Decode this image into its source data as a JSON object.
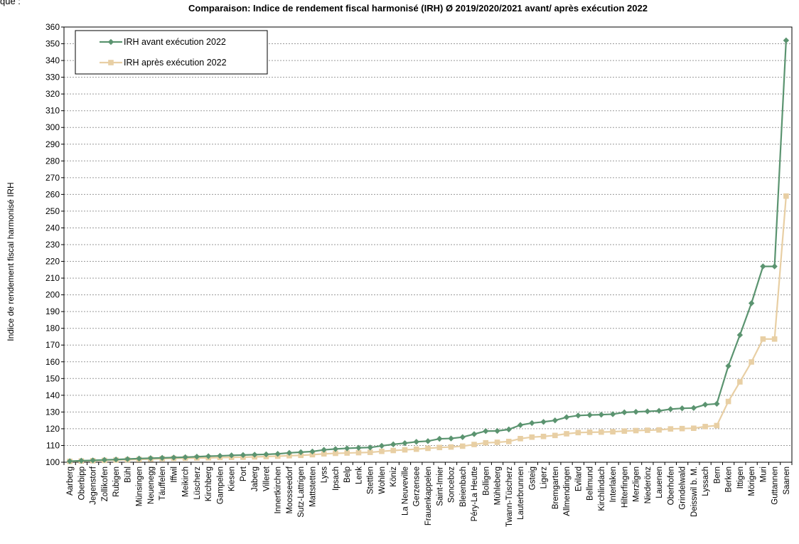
{
  "page": {
    "cutoff_text": "que :"
  },
  "chart_data": {
    "type": "line",
    "title": "Comparaison: Indice de rendement fiscal harmonisé (IRH) Ø 2019/2020/2021 avant/ après exécution 2022",
    "xlabel": "",
    "ylabel": "Indice de rendement fiscal harmonisé IRH",
    "ylim": [
      100,
      360
    ],
    "ystep": 10,
    "grid": true,
    "legend_position": "top-left",
    "categories": [
      "Aarberg",
      "Oberbipp",
      "Jegenstorf",
      "Zollikofen",
      "Rubigen",
      "Bühl",
      "Münsingen",
      "Neuenegg",
      "Täuffelen",
      "Iffwil",
      "Meikirch",
      "Lüscherz",
      "Kirchberg",
      "Gampelen",
      "Kiesen",
      "Port",
      "Jaberg",
      "Villeret",
      "Innertkirchen",
      "Moosseedorf",
      "Sutz-Lattrigen",
      "Mattstetten",
      "Lyss",
      "Ipsach",
      "Belp",
      "Lenk",
      "Stettlen",
      "Wohlen",
      "Köniz",
      "La Neuveville",
      "Gerzensee",
      "Frauenkappelen",
      "Saint-Imier",
      "Sonceboz",
      "Bleienbach",
      "Péry-La Heutte",
      "Bolligen",
      "Mühleberg",
      "Twann-Tüscherz",
      "Lauterbrunnen",
      "Gsteig",
      "Ligerz",
      "Bremgarten",
      "Allmendingen",
      "Evilard",
      "Bellmund",
      "Kirchlindach",
      "Interlaken",
      "Hilterfingen",
      "Merzligen",
      "Niederönz",
      "Lauenen",
      "Oberhofen",
      "Grindelwald",
      "Deisswil b. M.",
      "Lyssach",
      "Bern",
      "Berken",
      "Ittigen",
      "Mörigen",
      "Muri",
      "Guttannen",
      "Saanen"
    ],
    "series": [
      {
        "name": "IRH avant exécution 2022",
        "color": "#5b9470",
        "marker": "diamond",
        "values": [
          100.6,
          100.9,
          101.1,
          101.4,
          101.6,
          101.9,
          102.2,
          102.4,
          102.6,
          102.8,
          103.0,
          103.3,
          103.6,
          103.8,
          104.1,
          104.3,
          104.5,
          104.7,
          105.0,
          105.6,
          106.0,
          106.4,
          107.4,
          107.9,
          108.3,
          108.6,
          108.8,
          109.8,
          110.7,
          111.4,
          112.2,
          112.6,
          114.0,
          114.2,
          115.0,
          116.8,
          118.6,
          118.7,
          119.6,
          122.2,
          123.4,
          124.1,
          125.0,
          126.9,
          127.9,
          128.2,
          128.4,
          128.7,
          129.8,
          130.1,
          130.4,
          130.7,
          131.7,
          132.2,
          132.4,
          134.4,
          134.9,
          157.5,
          176.0,
          195.0,
          217.0,
          217.0,
          352.0
        ]
      },
      {
        "name": "IRH après exécution 2022",
        "color": "#e8cfa4",
        "marker": "square",
        "values": [
          100.5,
          100.7,
          100.9,
          101.1,
          101.3,
          101.5,
          101.7,
          101.9,
          102.1,
          102.3,
          102.4,
          102.5,
          102.6,
          102.8,
          102.9,
          103.0,
          103.2,
          103.4,
          103.6,
          103.9,
          104.1,
          104.5,
          105.0,
          105.3,
          105.5,
          105.7,
          105.9,
          106.5,
          107.0,
          107.4,
          107.8,
          108.3,
          108.8,
          109.1,
          109.6,
          110.6,
          111.6,
          111.9,
          112.4,
          114.1,
          115.0,
          115.4,
          116.0,
          117.0,
          117.7,
          117.9,
          118.0,
          118.2,
          118.6,
          118.9,
          119.1,
          119.3,
          119.9,
          120.1,
          120.3,
          121.3,
          121.9,
          136.3,
          148.0,
          159.9,
          173.6,
          173.6,
          259.0
        ]
      }
    ]
  }
}
